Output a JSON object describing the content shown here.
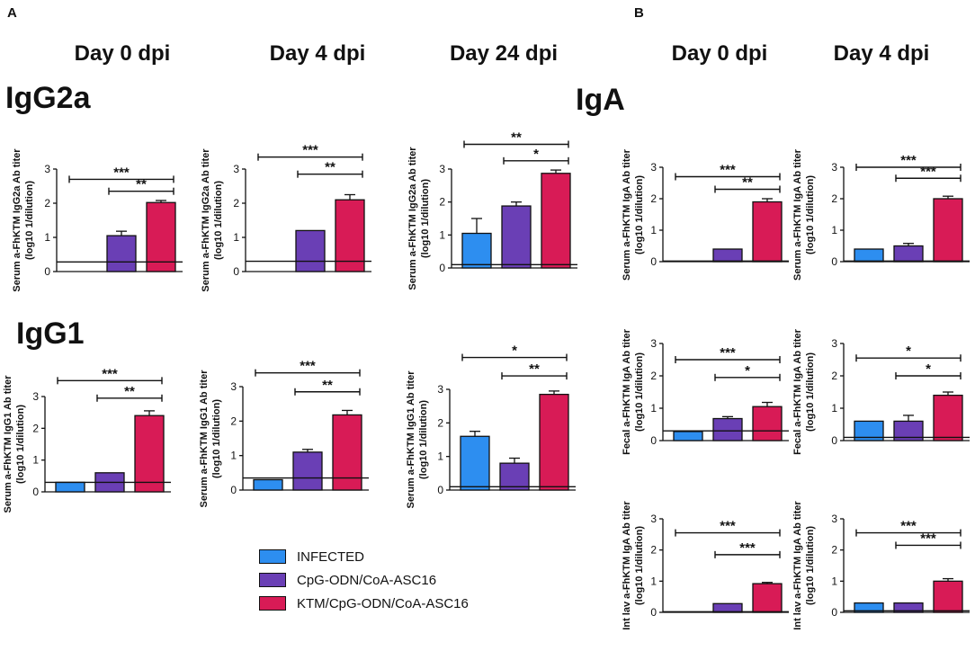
{
  "labels": {
    "panel_a": "A",
    "panel_b": "B"
  },
  "column_titles": {
    "a_day0": "Day 0 dpi",
    "a_day4": "Day 4 dpi",
    "a_day24": "Day 24 dpi",
    "b_day0": "Day 0 dpi",
    "b_day4": "Day 4 dpi"
  },
  "row_titles": {
    "igg2a": "IgG2a",
    "igg1": "IgG1",
    "iga": "IgA"
  },
  "colors": {
    "infected": "#2d8ef0",
    "cpg": "#6a3fb5",
    "ktm": "#d81b56"
  },
  "legend": [
    {
      "label": "INFECTED",
      "color": "#2d8ef0"
    },
    {
      "label": "CpG-ODN/CoA-ASC16",
      "color": "#6a3fb5"
    },
    {
      "label": "KTM/CpG-ODN/CoA-ASC16",
      "color": "#d81b56"
    }
  ],
  "chart_data": [
    {
      "id": "igg2a_d0",
      "type": "bar",
      "ylabel_top": "Serum a-FhKTM IgG2a Ab titer",
      "ylabel_bottom": "(log10 1/dilution)",
      "ylim": [
        0,
        3
      ],
      "yticks": [
        "0",
        "1",
        "2",
        "3"
      ],
      "values": [
        0,
        1.05,
        2.02
      ],
      "errors": [
        0,
        0.13,
        0.06
      ],
      "baseline": 0.28,
      "sig": [
        {
          "from": 0,
          "to": 2,
          "y": 2.7,
          "label": "***"
        },
        {
          "from": 1,
          "to": 2,
          "y": 2.35,
          "label": "**"
        }
      ]
    },
    {
      "id": "igg2a_d4",
      "type": "bar",
      "ylabel_top": "Serum a-FhKTM IgG2a Ab titer",
      "ylabel_bottom": "(log10 1/dilution)",
      "ylim": [
        0,
        3
      ],
      "yticks": [
        "0",
        "1",
        "2",
        "3"
      ],
      "values": [
        0,
        1.2,
        2.1
      ],
      "errors": [
        0,
        0,
        0.15
      ],
      "baseline": 0.3,
      "sig": [
        {
          "from": 0,
          "to": 2,
          "y": 3.35,
          "label": "***"
        },
        {
          "from": 1,
          "to": 2,
          "y": 2.85,
          "label": "**"
        }
      ]
    },
    {
      "id": "igg2a_d24",
      "type": "bar",
      "ylabel_top": "Serum a-FhKTM IgG2a Ab titer",
      "ylabel_bottom": "(log10 1/dilution)",
      "ylim": [
        0,
        3
      ],
      "yticks": [
        "0",
        "1",
        "2",
        "3"
      ],
      "values": [
        1.05,
        1.88,
        2.87
      ],
      "errors": [
        0.45,
        0.12,
        0.1
      ],
      "baseline": 0.1,
      "sig": [
        {
          "from": 0,
          "to": 2,
          "y": 3.75,
          "label": "**"
        },
        {
          "from": 1,
          "to": 2,
          "y": 3.25,
          "label": "*"
        }
      ]
    },
    {
      "id": "igg1_d0",
      "type": "bar",
      "ylabel_top": "Serum a-FhKTM IgG1 Ab titer",
      "ylabel_bottom": "(log10 1/dilution)",
      "ylim": [
        0,
        3
      ],
      "yticks": [
        "0",
        "1",
        "2",
        "3"
      ],
      "values": [
        0.3,
        0.6,
        2.4
      ],
      "errors": [
        0,
        0,
        0.15
      ],
      "baseline": 0.3,
      "sig": [
        {
          "from": 0,
          "to": 2,
          "y": 3.5,
          "label": "***"
        },
        {
          "from": 1,
          "to": 2,
          "y": 2.95,
          "label": "**"
        }
      ]
    },
    {
      "id": "igg1_d4",
      "type": "bar",
      "ylabel_top": "Serum a-FhKTM IgG1 Ab titer",
      "ylabel_bottom": "(log10 1/dilution)",
      "ylim": [
        0,
        3
      ],
      "yticks": [
        "0",
        "1",
        "2",
        "3"
      ],
      "values": [
        0.3,
        1.1,
        2.18
      ],
      "errors": [
        0,
        0.08,
        0.13
      ],
      "baseline": 0.35,
      "sig": [
        {
          "from": 0,
          "to": 2,
          "y": 3.4,
          "label": "***"
        },
        {
          "from": 1,
          "to": 2,
          "y": 2.85,
          "label": "**"
        }
      ]
    },
    {
      "id": "igg1_d24",
      "type": "bar",
      "ylabel_top": "Serum a-FhKTM IgG1 Ab titer",
      "ylabel_bottom": "(log10 1/dilution)",
      "ylim": [
        0,
        3
      ],
      "yticks": [
        "0",
        "1",
        "2",
        "3"
      ],
      "values": [
        1.6,
        0.8,
        2.85
      ],
      "errors": [
        0.15,
        0.15,
        0.1
      ],
      "baseline": 0.1,
      "sig": [
        {
          "from": 0,
          "to": 2,
          "y": 3.95,
          "label": "*"
        },
        {
          "from": 1,
          "to": 2,
          "y": 3.4,
          "label": "**"
        }
      ]
    },
    {
      "id": "iga_serum_d0",
      "type": "bar",
      "ylabel_top": "Serum a-FhKTM IgA Ab titer",
      "ylabel_bottom": "(log10 1/dilution)",
      "ylim": [
        0,
        3
      ],
      "yticks": [
        "0",
        "1",
        "2",
        "3"
      ],
      "values": [
        0,
        0.4,
        1.9
      ],
      "errors": [
        0,
        0,
        0.1
      ],
      "baseline": 0.02,
      "sig": [
        {
          "from": 0,
          "to": 2,
          "y": 2.7,
          "label": "***"
        },
        {
          "from": 1,
          "to": 2,
          "y": 2.3,
          "label": "**"
        }
      ]
    },
    {
      "id": "iga_serum_d4",
      "type": "bar",
      "ylabel_top": "Serum a-FhKTM IgA Ab titer",
      "ylabel_bottom": "(log10 1/dilution)",
      "ylim": [
        0,
        3
      ],
      "yticks": [
        "0",
        "1",
        "2",
        "3"
      ],
      "values": [
        0.4,
        0.5,
        2.0
      ],
      "errors": [
        0,
        0.08,
        0.08
      ],
      "baseline": 0.02,
      "sig": [
        {
          "from": 0,
          "to": 2,
          "y": 3.0,
          "label": "***"
        },
        {
          "from": 1,
          "to": 2,
          "y": 2.65,
          "label": "***"
        }
      ]
    },
    {
      "id": "iga_fecal_d0",
      "type": "bar",
      "ylabel_top": "Fecal a-FhKTM IgA Ab titer",
      "ylabel_bottom": "(log10 1/dilution)",
      "ylim": [
        0,
        3
      ],
      "yticks": [
        "0",
        "1",
        "2",
        "3"
      ],
      "values": [
        0.28,
        0.68,
        1.05
      ],
      "errors": [
        0,
        0.06,
        0.13
      ],
      "baseline": 0.3,
      "sig": [
        {
          "from": 0,
          "to": 2,
          "y": 2.5,
          "label": "***"
        },
        {
          "from": 1,
          "to": 2,
          "y": 1.95,
          "label": "*"
        }
      ]
    },
    {
      "id": "iga_fecal_d4",
      "type": "bar",
      "ylabel_top": "Fecal a-FhKTM IgA Ab titer",
      "ylabel_bottom": "(log10 1/dilution)",
      "ylim": [
        0,
        3
      ],
      "yticks": [
        "0",
        "1",
        "2",
        "3"
      ],
      "values": [
        0.6,
        0.6,
        1.4
      ],
      "errors": [
        0,
        0.18,
        0.1
      ],
      "baseline": 0.1,
      "sig": [
        {
          "from": 0,
          "to": 2,
          "y": 2.55,
          "label": "*"
        },
        {
          "from": 1,
          "to": 2,
          "y": 2.0,
          "label": "*"
        }
      ]
    },
    {
      "id": "iga_intlav_d0",
      "type": "bar",
      "ylabel_top": "Int lav a-FhKTM IgA Ab titer",
      "ylabel_bottom": "(log10 1/dilution)",
      "ylim": [
        0,
        3
      ],
      "yticks": [
        "0",
        "1",
        "2",
        "3"
      ],
      "values": [
        0,
        0.28,
        0.92
      ],
      "errors": [
        0,
        0,
        0.04
      ],
      "baseline": 0.02,
      "sig": [
        {
          "from": 0,
          "to": 2,
          "y": 2.55,
          "label": "***"
        },
        {
          "from": 1,
          "to": 2,
          "y": 1.85,
          "label": "***"
        }
      ]
    },
    {
      "id": "iga_intlav_d4",
      "type": "bar",
      "ylabel_top": "Int lav a-FhKTM IgA Ab titer",
      "ylabel_bottom": "(log10 1/dilution)",
      "ylim": [
        0,
        3
      ],
      "yticks": [
        "0",
        "1",
        "2",
        "3"
      ],
      "values": [
        0.3,
        0.3,
        1.0
      ],
      "errors": [
        0,
        0,
        0.08
      ],
      "baseline": 0.05,
      "sig": [
        {
          "from": 0,
          "to": 2,
          "y": 2.55,
          "label": "***"
        },
        {
          "from": 1,
          "to": 2,
          "y": 2.15,
          "label": "***"
        }
      ]
    }
  ]
}
